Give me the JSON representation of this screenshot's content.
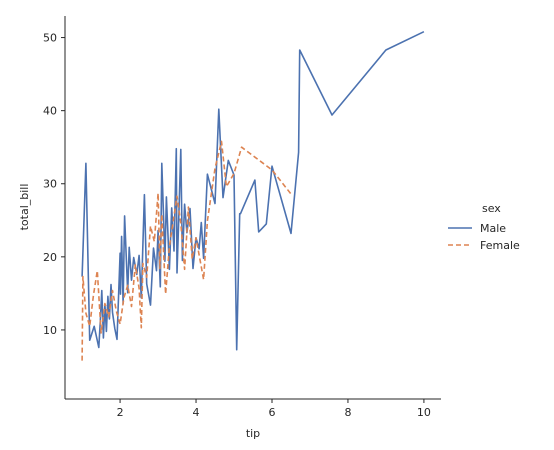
{
  "chart_data": {
    "type": "line",
    "xlabel": "tip",
    "ylabel": "total_bill",
    "xlim": [
      0.55,
      10.45
    ],
    "ylim": [
      0.55,
      52.95
    ],
    "xticks": [
      2,
      4,
      6,
      8,
      10
    ],
    "yticks": [
      10,
      20,
      30,
      40,
      50
    ],
    "grid": false,
    "legend": {
      "title": "sex",
      "placement": "right",
      "entries": [
        {
          "label": "Male",
          "color": "#4c72b0",
          "dash": "solid"
        },
        {
          "label": "Female",
          "color": "#dd8452",
          "dash": "dashed"
        }
      ]
    },
    "series": [
      {
        "name": "Male",
        "color": "#4c72b0",
        "x": [
          1.0,
          1.1,
          1.2,
          1.32,
          1.44,
          1.48,
          1.52,
          1.56,
          1.6,
          1.64,
          1.68,
          1.72,
          1.76,
          1.8,
          1.86,
          1.92,
          2.0,
          2.01,
          2.04,
          2.08,
          2.12,
          2.2,
          2.24,
          2.3,
          2.36,
          2.44,
          2.5,
          2.56,
          2.64,
          2.7,
          2.8,
          2.88,
          2.96,
          3.0,
          3.06,
          3.1,
          3.14,
          3.18,
          3.22,
          3.3,
          3.36,
          3.42,
          3.48,
          3.5,
          3.54,
          3.6,
          3.64,
          3.7,
          3.76,
          3.84,
          3.92,
          4.0,
          4.08,
          4.14,
          4.2,
          4.3,
          4.5,
          4.6,
          4.71,
          4.85,
          5.0,
          5.07,
          5.15,
          5.17,
          5.55,
          5.65,
          5.85,
          6.0,
          6.5,
          6.7,
          6.73,
          7.58,
          9.0,
          10.0
        ],
        "y": [
          17.3,
          32.8,
          8.6,
          10.5,
          7.6,
          11.2,
          15.4,
          8.9,
          13.5,
          9.8,
          14.6,
          11.5,
          16.2,
          12.4,
          10.2,
          8.7,
          20.5,
          14.9,
          22.8,
          13.6,
          25.6,
          15.1,
          21.3,
          16.8,
          19.9,
          17.6,
          20.2,
          14.4,
          28.5,
          16.3,
          13.4,
          21.2,
          18.1,
          23.6,
          15.9,
          32.8,
          26.1,
          19.4,
          28.2,
          18.3,
          26.7,
          20.8,
          34.8,
          17.8,
          24.6,
          34.7,
          19.5,
          27.2,
          23.3,
          26.6,
          18.4,
          22.6,
          21.1,
          24.7,
          19.8,
          31.3,
          27.3,
          40.2,
          28.1,
          33.2,
          31.2,
          7.3,
          25.9,
          25.9,
          30.5,
          23.4,
          24.5,
          32.4,
          23.2,
          34.3,
          48.3,
          39.4,
          48.3,
          50.8
        ]
      },
      {
        "name": "Female",
        "color": "#dd8452",
        "x": [
          1.0,
          1.02,
          1.1,
          1.2,
          1.3,
          1.4,
          1.5,
          1.6,
          1.7,
          1.8,
          1.9,
          2.0,
          2.1,
          2.2,
          2.3,
          2.4,
          2.5,
          2.56,
          2.6,
          2.7,
          2.8,
          2.9,
          3.0,
          3.05,
          3.1,
          3.2,
          3.3,
          3.5,
          3.6,
          3.7,
          3.8,
          3.9,
          4.0,
          4.2,
          4.3,
          4.5,
          4.67,
          4.8,
          5.0,
          5.2,
          6.0,
          6.5
        ],
        "y": [
          5.8,
          17.3,
          12.3,
          10.5,
          14.8,
          18.1,
          9.6,
          13.6,
          11.8,
          15.4,
          12.6,
          10.8,
          14.4,
          16.1,
          13.2,
          18.9,
          15.7,
          10.3,
          19.1,
          17.2,
          24.2,
          22.1,
          28.7,
          18.4,
          25.8,
          14.9,
          21.4,
          28.3,
          24.6,
          18.3,
          26.8,
          19.7,
          22.6,
          16.9,
          24.9,
          32.1,
          35.8,
          29.6,
          31.4,
          35.0,
          31.9,
          28.6
        ]
      }
    ]
  }
}
